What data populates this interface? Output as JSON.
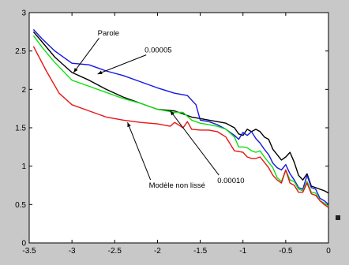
{
  "chart_data": {
    "type": "line",
    "title": "",
    "xlabel": "",
    "ylabel": "",
    "xlim": [
      -3.5,
      0
    ],
    "ylim": [
      0,
      3
    ],
    "xticks": [
      -3.5,
      -3,
      -2.5,
      -2,
      -1.5,
      -1,
      -0.5,
      0
    ],
    "xtick_labels": [
      "-3.5",
      "-3",
      "-2.5",
      "-2",
      "-1.5",
      "-1",
      "-0.5",
      "0"
    ],
    "yticks": [
      0,
      0.5,
      1,
      1.5,
      2,
      2.5,
      3
    ],
    "ytick_labels": [
      "0",
      "0.5",
      "1",
      "1.5",
      "2",
      "2.5",
      "3"
    ],
    "grid": false,
    "series": [
      {
        "name": "Parole",
        "color": "#000000",
        "x": [
          -3.45,
          -3.35,
          -3.2,
          -3.0,
          -2.8,
          -2.6,
          -2.4,
          -2.2,
          -2.0,
          -1.8,
          -1.6,
          -1.5,
          -1.4,
          -1.3,
          -1.2,
          -1.1,
          -1.05,
          -1.0,
          -0.95,
          -0.9,
          -0.85,
          -0.8,
          -0.75,
          -0.7,
          -0.65,
          -0.6,
          -0.55,
          -0.5,
          -0.45,
          -0.4,
          -0.35,
          -0.3,
          -0.25,
          -0.2,
          -0.15,
          -0.1,
          -0.05,
          0.0
        ],
        "y": [
          2.75,
          2.62,
          2.42,
          2.22,
          2.12,
          2.0,
          1.9,
          1.82,
          1.74,
          1.72,
          1.64,
          1.62,
          1.6,
          1.58,
          1.56,
          1.5,
          1.42,
          1.4,
          1.48,
          1.45,
          1.48,
          1.45,
          1.38,
          1.35,
          1.22,
          1.15,
          1.08,
          1.12,
          1.18,
          1.05,
          0.88,
          0.82,
          0.9,
          0.74,
          0.72,
          0.7,
          0.68,
          0.65
        ]
      },
      {
        "name": "0.00005",
        "color": "#1515e6",
        "x": [
          -3.45,
          -3.35,
          -3.2,
          -3.0,
          -2.8,
          -2.6,
          -2.4,
          -2.2,
          -2.0,
          -1.8,
          -1.65,
          -1.55,
          -1.5,
          -1.4,
          -1.3,
          -1.2,
          -1.1,
          -1.05,
          -1.0,
          -0.95,
          -0.9,
          -0.85,
          -0.8,
          -0.75,
          -0.7,
          -0.65,
          -0.6,
          -0.55,
          -0.5,
          -0.45,
          -0.4,
          -0.35,
          -0.3,
          -0.25,
          -0.2,
          -0.15,
          -0.1,
          -0.05,
          0.0
        ],
        "y": [
          2.78,
          2.66,
          2.5,
          2.34,
          2.32,
          2.24,
          2.18,
          2.1,
          2.02,
          1.95,
          1.92,
          1.8,
          1.6,
          1.58,
          1.54,
          1.48,
          1.4,
          1.35,
          1.44,
          1.4,
          1.45,
          1.36,
          1.3,
          1.22,
          1.15,
          1.04,
          0.98,
          0.95,
          1.02,
          0.9,
          0.82,
          0.72,
          0.7,
          0.88,
          0.72,
          0.7,
          0.58,
          0.55,
          0.5
        ]
      },
      {
        "name": "0.00010",
        "color": "#10e010",
        "x": [
          -3.45,
          -3.35,
          -3.2,
          -3.0,
          -2.8,
          -2.6,
          -2.4,
          -2.2,
          -2.0,
          -1.8,
          -1.7,
          -1.6,
          -1.5,
          -1.4,
          -1.3,
          -1.2,
          -1.1,
          -1.05,
          -1.0,
          -0.95,
          -0.9,
          -0.85,
          -0.8,
          -0.75,
          -0.7,
          -0.65,
          -0.6,
          -0.55,
          -0.5,
          -0.45,
          -0.4,
          -0.35,
          -0.3,
          -0.25,
          -0.2,
          -0.15,
          -0.1,
          -0.05,
          0.0
        ],
        "y": [
          2.7,
          2.55,
          2.35,
          2.12,
          2.04,
          1.96,
          1.88,
          1.82,
          1.74,
          1.7,
          1.7,
          1.6,
          1.56,
          1.54,
          1.52,
          1.48,
          1.38,
          1.25,
          1.25,
          1.24,
          1.2,
          1.18,
          1.2,
          1.12,
          1.05,
          0.98,
          0.85,
          0.8,
          0.95,
          0.82,
          0.8,
          0.7,
          0.68,
          0.8,
          0.66,
          0.65,
          0.55,
          0.52,
          0.48
        ]
      },
      {
        "name": "Modèle non lissé",
        "color": "#e61515",
        "x": [
          -3.45,
          -3.3,
          -3.15,
          -3.0,
          -2.8,
          -2.6,
          -2.4,
          -2.2,
          -2.0,
          -1.85,
          -1.8,
          -1.7,
          -1.65,
          -1.6,
          -1.5,
          -1.4,
          -1.3,
          -1.2,
          -1.1,
          -1.0,
          -0.95,
          -0.9,
          -0.85,
          -0.8,
          -0.75,
          -0.7,
          -0.65,
          -0.6,
          -0.55,
          -0.5,
          -0.45,
          -0.4,
          -0.35,
          -0.3,
          -0.25,
          -0.2,
          -0.15,
          -0.1,
          -0.05,
          0.0
        ],
        "y": [
          2.56,
          2.24,
          1.95,
          1.8,
          1.72,
          1.64,
          1.6,
          1.57,
          1.55,
          1.52,
          1.57,
          1.5,
          1.58,
          1.48,
          1.47,
          1.47,
          1.45,
          1.38,
          1.2,
          1.18,
          1.12,
          1.1,
          1.1,
          1.12,
          1.05,
          0.98,
          0.88,
          0.82,
          0.78,
          0.95,
          0.78,
          0.75,
          0.66,
          0.66,
          0.78,
          0.64,
          0.62,
          0.55,
          0.5,
          0.46
        ]
      }
    ],
    "annotations": [
      {
        "text": "Parole",
        "text_x": -2.7,
        "text_y": 2.7,
        "arrow_to_x": -2.98,
        "arrow_to_y": 2.22
      },
      {
        "text": "0.00005",
        "text_x": -2.15,
        "text_y": 2.48,
        "arrow_to_x": -2.7,
        "arrow_to_y": 2.2
      },
      {
        "text": "Modèle non lissé",
        "text_x": -2.1,
        "text_y": 0.72,
        "arrow_to_x": -2.35,
        "arrow_to_y": 1.57
      },
      {
        "text": "0.00010",
        "text_x": -1.3,
        "text_y": 0.78,
        "arrow_to_x": -1.85,
        "arrow_to_y": 1.72
      }
    ]
  },
  "colors": {
    "figure_background": "#c8c8c8",
    "plot_background": "#ffffff",
    "axis": "#000000",
    "side_marker": "#222222"
  }
}
